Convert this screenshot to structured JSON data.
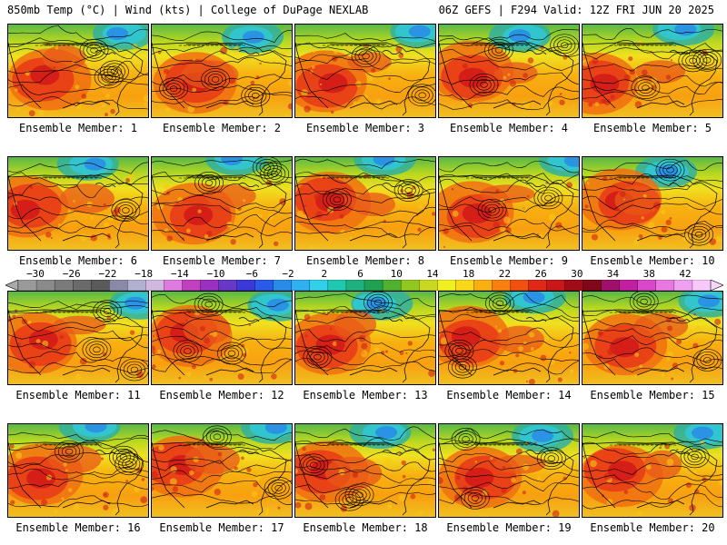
{
  "header": {
    "left_title": "850mb Temp (°C) | Wind (kts) | College of DuPage NEXLAB",
    "right_title": "06Z GEFS | F294 Valid: 12Z FRI JUN 20 2025"
  },
  "members": [
    {
      "label": "Ensemble Member: 1"
    },
    {
      "label": "Ensemble Member: 2"
    },
    {
      "label": "Ensemble Member: 3"
    },
    {
      "label": "Ensemble Member: 4"
    },
    {
      "label": "Ensemble Member: 5"
    },
    {
      "label": "Ensemble Member: 6"
    },
    {
      "label": "Ensemble Member: 7"
    },
    {
      "label": "Ensemble Member: 8"
    },
    {
      "label": "Ensemble Member: 9"
    },
    {
      "label": "Ensemble Member: 10"
    },
    {
      "label": "Ensemble Member: 11"
    },
    {
      "label": "Ensemble Member: 12"
    },
    {
      "label": "Ensemble Member: 13"
    },
    {
      "label": "Ensemble Member: 14"
    },
    {
      "label": "Ensemble Member: 15"
    },
    {
      "label": "Ensemble Member: 16"
    },
    {
      "label": "Ensemble Member: 17"
    },
    {
      "label": "Ensemble Member: 18"
    },
    {
      "label": "Ensemble Member: 19"
    },
    {
      "label": "Ensemble Member: 20"
    }
  ],
  "colorbar": {
    "labels": [
      "−30",
      "−26",
      "−22",
      "−18",
      "−14",
      "−10",
      "−6",
      "−2",
      "2",
      "6",
      "10",
      "14",
      "18",
      "22",
      "26",
      "30",
      "34",
      "38",
      "42"
    ],
    "colors": [
      "#9a9a9a",
      "#8a8a8a",
      "#7a7a7a",
      "#6a6a6a",
      "#5a5a5a",
      "#8a8aa8",
      "#b0b0d0",
      "#d0b8e0",
      "#e07ae0",
      "#c040c0",
      "#9a30c0",
      "#6a38c8",
      "#3a3ad8",
      "#2a5ae8",
      "#2a8ae8",
      "#30b0f0",
      "#30d0e8",
      "#20c8b0",
      "#20b080",
      "#20a050",
      "#50b030",
      "#90c820",
      "#c8d820",
      "#f0f020",
      "#f8d818",
      "#f8b010",
      "#f88010",
      "#f05010",
      "#e02818",
      "#c81818",
      "#a00c18",
      "#800818",
      "#a0106a",
      "#c020a0",
      "#d848c8",
      "#e878e0",
      "#f0a0f0",
      "#f8c8f8"
    ]
  }
}
